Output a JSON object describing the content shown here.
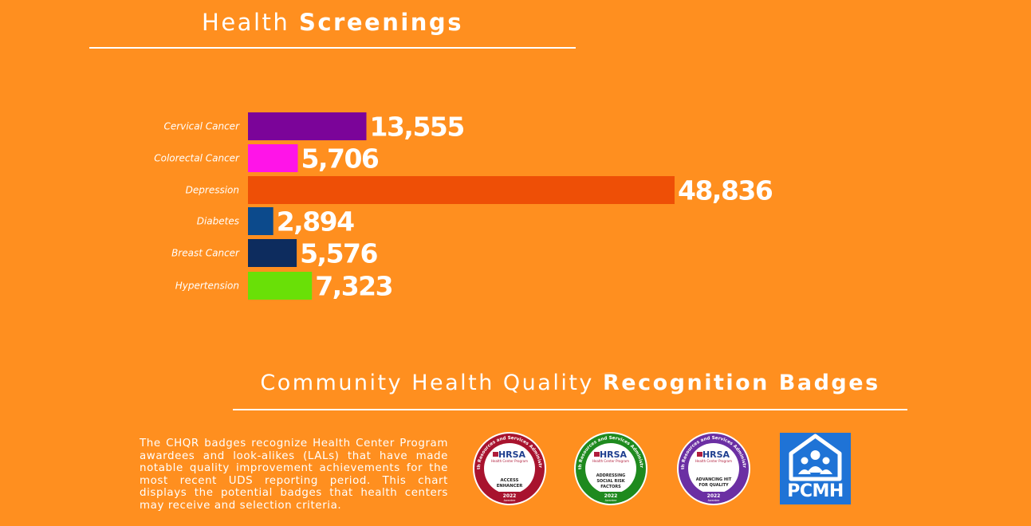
{
  "screenings_title": {
    "light": "Health",
    "bold": "Screenings"
  },
  "chart_data": {
    "type": "bar",
    "orientation": "horizontal",
    "categories": [
      "Cervical Cancer",
      "Colorectal Cancer",
      "Depression",
      "Diabetes",
      "Breast Cancer",
      "Hypertension"
    ],
    "values": [
      13555,
      5706,
      48836,
      2894,
      5576,
      7323
    ],
    "value_labels": [
      "13,555",
      "5,706",
      "48,836",
      "2,894",
      "5,576",
      "7,323"
    ],
    "colors": [
      "#7B0499",
      "#FF14E8",
      "#EE4F06",
      "#0C4A8C",
      "#0D2C5E",
      "#69E007"
    ],
    "xlim": [
      0,
      48836
    ],
    "grid": false,
    "legend": "none"
  },
  "badges_title": {
    "light": "Community Health Quality",
    "bold": "Recognition Badges"
  },
  "description": "The CHQR badges recognize Health Center Program awardees and look-alikes (LALs) that have made notable quality improvement achievements for the most recent UDS reporting period. This chart displays the potential badges that health centers may receive and selection criteria.",
  "badges": [
    {
      "ring_text": "Health Resources and Services Administration",
      "brand": "HRSA",
      "program": "Health Center Program",
      "line1": "ACCESS",
      "line2": "ENHANCER",
      "year": "2022",
      "year_sub": "Awardee",
      "color": "#A8132E"
    },
    {
      "ring_text": "Health Resources and Services Administration",
      "brand": "HRSA",
      "program": "Health Center Program",
      "line1": "ADDRESSING",
      "line2": "SOCIAL RISK",
      "line3": "FACTORS",
      "year": "2022",
      "year_sub": "Awardee",
      "color": "#1E8A1E"
    },
    {
      "ring_text": "Health Resources and Services Administration",
      "brand": "HRSA",
      "program": "Health Center Program",
      "line1": "ADVANCING HIT",
      "line2": "FOR QUALITY",
      "year": "2022",
      "year_sub": "Awardee",
      "color": "#6B2FA3"
    }
  ],
  "pcmh": {
    "label": "PCMH",
    "color": "#1F73D6"
  }
}
